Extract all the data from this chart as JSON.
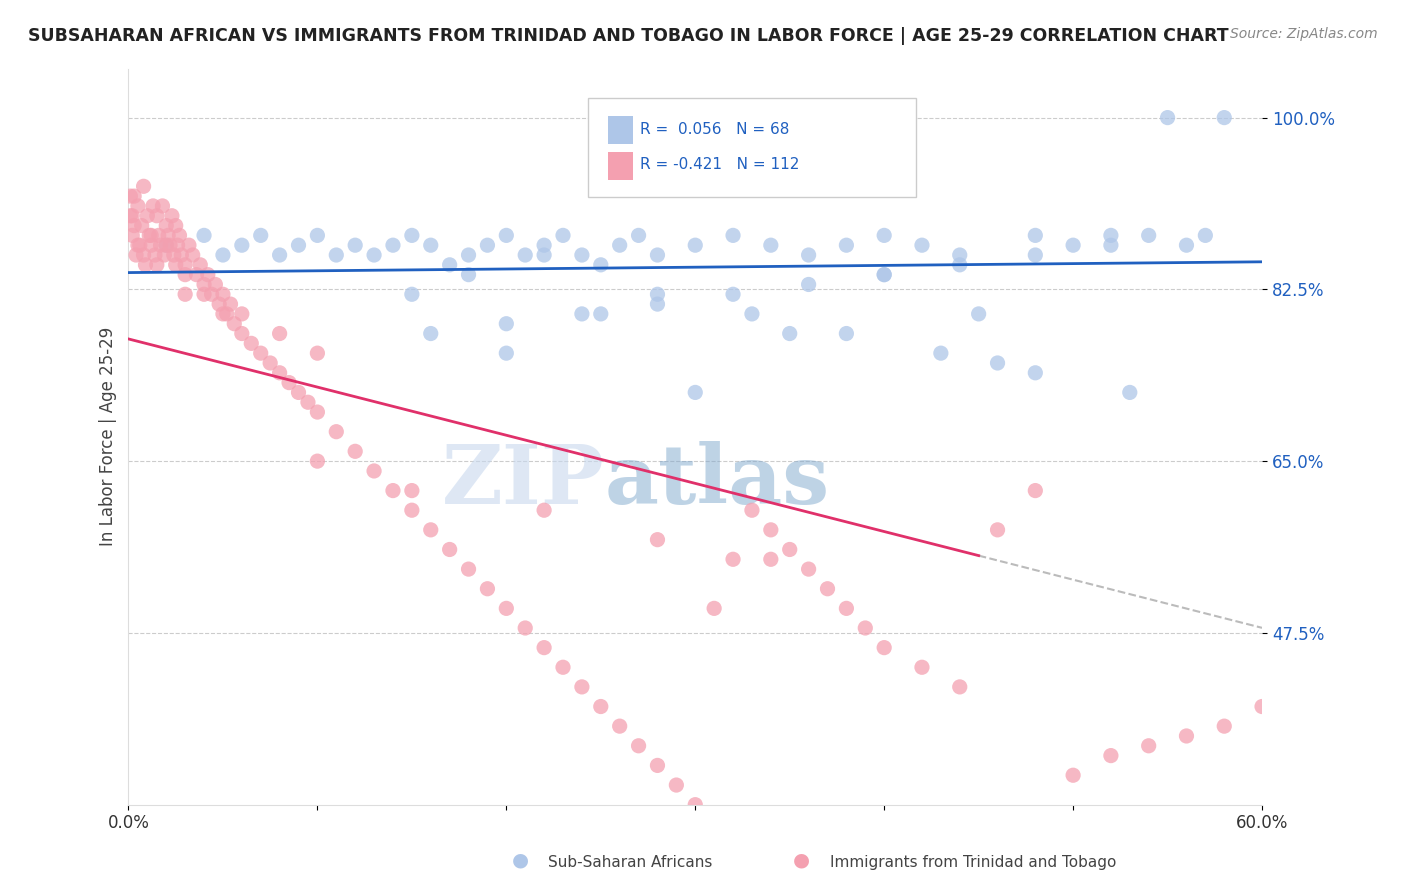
{
  "title": "SUBSAHARAN AFRICAN VS IMMIGRANTS FROM TRINIDAD AND TOBAGO IN LABOR FORCE | AGE 25-29 CORRELATION CHART",
  "source": "Source: ZipAtlas.com",
  "xlabel_blue": "Sub-Saharan Africans",
  "xlabel_pink": "Immigrants from Trinidad and Tobago",
  "ylabel": "In Labor Force | Age 25-29",
  "xlim": [
    0.0,
    0.6
  ],
  "ylim": [
    0.3,
    1.05
  ],
  "yticks": [
    0.475,
    0.65,
    0.825,
    1.0
  ],
  "ytick_labels": [
    "47.5%",
    "65.0%",
    "82.5%",
    "100.0%"
  ],
  "blue_color": "#aec6e8",
  "pink_color": "#f4a0b0",
  "blue_line_color": "#2060c0",
  "pink_line_color": "#e0306a",
  "R_blue": 0.056,
  "N_blue": 68,
  "R_pink": -0.421,
  "N_pink": 112,
  "watermark_zip": "ZIP",
  "watermark_atlas": "atlas",
  "blue_scatter_x": [
    0.02,
    0.04,
    0.05,
    0.06,
    0.07,
    0.08,
    0.09,
    0.1,
    0.11,
    0.12,
    0.13,
    0.14,
    0.15,
    0.16,
    0.17,
    0.18,
    0.19,
    0.2,
    0.21,
    0.22,
    0.23,
    0.24,
    0.25,
    0.26,
    0.27,
    0.28,
    0.3,
    0.32,
    0.34,
    0.36,
    0.38,
    0.4,
    0.42,
    0.44,
    0.46,
    0.48,
    0.5,
    0.52,
    0.54,
    0.56,
    0.3,
    0.25,
    0.2,
    0.15,
    0.35,
    0.4,
    0.45,
    0.22,
    0.18,
    0.28,
    0.33,
    0.38,
    0.43,
    0.48,
    0.53,
    0.57,
    0.58,
    0.55,
    0.52,
    0.48,
    0.44,
    0.4,
    0.36,
    0.32,
    0.28,
    0.24,
    0.2,
    0.16
  ],
  "blue_scatter_y": [
    0.87,
    0.88,
    0.86,
    0.87,
    0.88,
    0.86,
    0.87,
    0.88,
    0.86,
    0.87,
    0.86,
    0.87,
    0.88,
    0.87,
    0.85,
    0.86,
    0.87,
    0.88,
    0.86,
    0.87,
    0.88,
    0.86,
    0.85,
    0.87,
    0.88,
    0.86,
    0.87,
    0.88,
    0.87,
    0.86,
    0.87,
    0.88,
    0.87,
    0.86,
    0.75,
    0.88,
    0.87,
    0.87,
    0.88,
    0.87,
    0.72,
    0.8,
    0.76,
    0.82,
    0.78,
    0.84,
    0.8,
    0.86,
    0.84,
    0.82,
    0.8,
    0.78,
    0.76,
    0.74,
    0.72,
    0.88,
    1.0,
    1.0,
    0.88,
    0.86,
    0.85,
    0.84,
    0.83,
    0.82,
    0.81,
    0.8,
    0.79,
    0.78
  ],
  "pink_scatter_x": [
    0.001,
    0.002,
    0.003,
    0.004,
    0.005,
    0.006,
    0.007,
    0.008,
    0.009,
    0.01,
    0.011,
    0.012,
    0.013,
    0.014,
    0.015,
    0.016,
    0.017,
    0.018,
    0.019,
    0.02,
    0.021,
    0.022,
    0.023,
    0.024,
    0.025,
    0.026,
    0.027,
    0.028,
    0.03,
    0.032,
    0.034,
    0.036,
    0.038,
    0.04,
    0.042,
    0.044,
    0.046,
    0.048,
    0.05,
    0.052,
    0.054,
    0.056,
    0.06,
    0.065,
    0.07,
    0.075,
    0.08,
    0.085,
    0.09,
    0.095,
    0.1,
    0.11,
    0.12,
    0.13,
    0.14,
    0.15,
    0.16,
    0.17,
    0.18,
    0.19,
    0.2,
    0.21,
    0.22,
    0.23,
    0.24,
    0.25,
    0.26,
    0.27,
    0.28,
    0.29,
    0.3,
    0.31,
    0.32,
    0.33,
    0.34,
    0.35,
    0.36,
    0.37,
    0.38,
    0.39,
    0.4,
    0.42,
    0.44,
    0.46,
    0.48,
    0.5,
    0.52,
    0.54,
    0.56,
    0.58,
    0.6,
    0.34,
    0.28,
    0.22,
    0.15,
    0.1,
    0.05,
    0.03,
    0.015,
    0.005,
    0.003,
    0.002,
    0.001,
    0.008,
    0.012,
    0.02,
    0.025,
    0.03,
    0.04,
    0.06,
    0.08,
    0.1
  ],
  "pink_scatter_y": [
    0.9,
    0.88,
    0.92,
    0.86,
    0.91,
    0.87,
    0.89,
    0.93,
    0.85,
    0.9,
    0.88,
    0.87,
    0.91,
    0.86,
    0.9,
    0.88,
    0.87,
    0.91,
    0.86,
    0.89,
    0.88,
    0.87,
    0.9,
    0.86,
    0.89,
    0.87,
    0.88,
    0.86,
    0.85,
    0.87,
    0.86,
    0.84,
    0.85,
    0.83,
    0.84,
    0.82,
    0.83,
    0.81,
    0.82,
    0.8,
    0.81,
    0.79,
    0.78,
    0.77,
    0.76,
    0.75,
    0.74,
    0.73,
    0.72,
    0.71,
    0.7,
    0.68,
    0.66,
    0.64,
    0.62,
    0.6,
    0.58,
    0.56,
    0.54,
    0.52,
    0.5,
    0.48,
    0.46,
    0.44,
    0.42,
    0.4,
    0.38,
    0.36,
    0.34,
    0.32,
    0.3,
    0.5,
    0.55,
    0.6,
    0.58,
    0.56,
    0.54,
    0.52,
    0.5,
    0.48,
    0.46,
    0.44,
    0.42,
    0.58,
    0.62,
    0.33,
    0.35,
    0.36,
    0.37,
    0.38,
    0.4,
    0.55,
    0.57,
    0.6,
    0.62,
    0.65,
    0.8,
    0.82,
    0.85,
    0.87,
    0.89,
    0.9,
    0.92,
    0.86,
    0.88,
    0.87,
    0.85,
    0.84,
    0.82,
    0.8,
    0.78,
    0.76
  ]
}
